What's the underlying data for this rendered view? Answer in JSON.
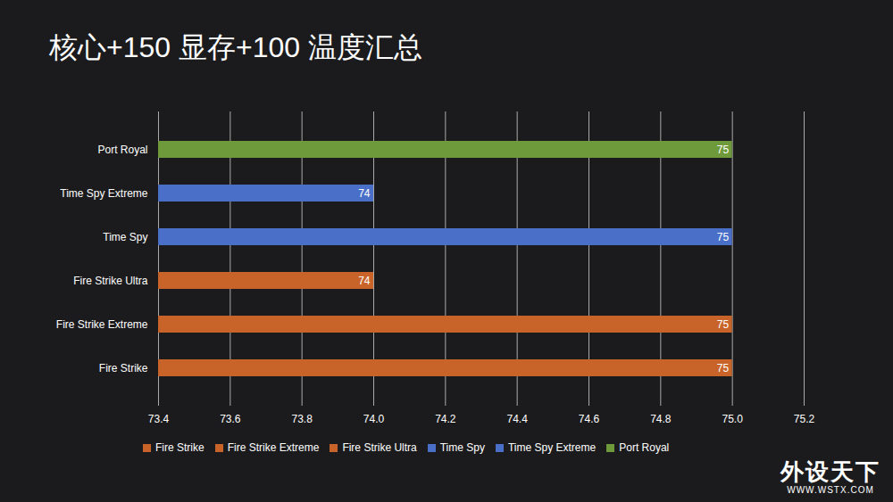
{
  "chart_data": {
    "type": "bar",
    "orientation": "horizontal",
    "title": "核心+150 显存+100 温度汇总",
    "categories": [
      "Fire Strike",
      "Fire Strike Extreme",
      "Fire Strike Ultra",
      "Time Spy",
      "Time Spy Extreme",
      "Port Royal"
    ],
    "values": [
      75,
      75,
      74,
      75,
      74,
      75
    ],
    "colors": [
      "#c8642a",
      "#c8642a",
      "#c8642a",
      "#4a6fc9",
      "#4a6fc9",
      "#6e9a3c"
    ],
    "xlim": [
      73.4,
      75.2
    ],
    "xticks": [
      73.4,
      73.6,
      73.8,
      74,
      74.2,
      74.4,
      74.6,
      74.8,
      75,
      75.2
    ],
    "grid": true,
    "data_labels": true,
    "legend": "bottom",
    "watermark": [
      "外设天下",
      "WWW.WSTX.COM"
    ]
  }
}
